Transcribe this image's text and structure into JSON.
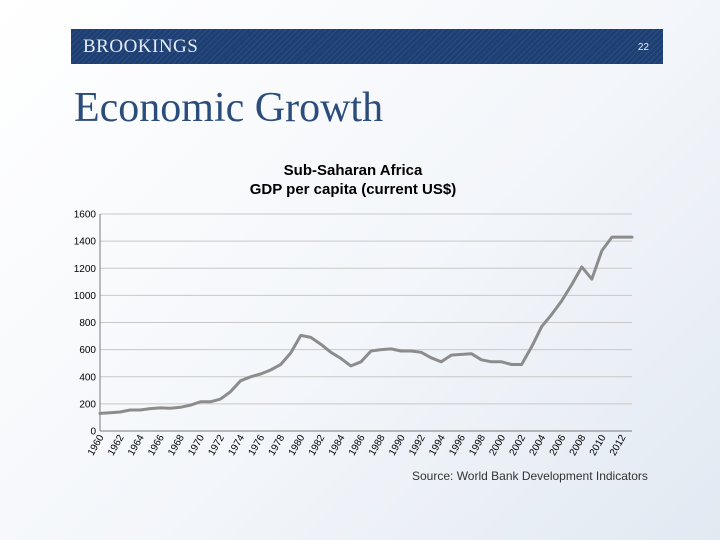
{
  "header": {
    "brand": "BROOKINGS",
    "slide_number": "22"
  },
  "page_title": "Economic Growth",
  "source_note": "Source: World Bank Development Indicators",
  "colors": {
    "header_bar": "#1d3f73",
    "title_text": "#2b4d7c",
    "series_line": "#8c8c8c",
    "gridline": "#c8c8c8"
  },
  "chart_data": {
    "type": "line",
    "title": "Sub-Saharan Africa",
    "subtitle": "GDP per capita (current US$)",
    "xlabel": "",
    "ylabel": "",
    "xlim": [
      1960,
      2013
    ],
    "ylim": [
      0,
      1600
    ],
    "y_ticks": [
      0,
      200,
      400,
      600,
      800,
      1000,
      1200,
      1400,
      1600
    ],
    "x_ticks": [
      "1960",
      "1962",
      "1964",
      "1966",
      "1968",
      "1970",
      "1972",
      "1974",
      "1976",
      "1978",
      "1980",
      "1982",
      "1984",
      "1986",
      "1988",
      "1990",
      "1992",
      "1994",
      "1996",
      "1998",
      "2000",
      "2002",
      "2004",
      "2006",
      "2008",
      "2010",
      "2012"
    ],
    "grid": true,
    "legend": "none",
    "series": [
      {
        "x": [
          1960,
          1961,
          1962,
          1963,
          1964,
          1965,
          1966,
          1967,
          1968,
          1969,
          1970,
          1971,
          1972,
          1973,
          1974,
          1975,
          1976,
          1977,
          1978,
          1979,
          1980,
          1981,
          1982,
          1983,
          1984,
          1985,
          1986,
          1987,
          1988,
          1989,
          1990,
          1991,
          1992,
          1993,
          1994,
          1995,
          1996,
          1997,
          1998,
          1999,
          2000,
          2001,
          2002,
          2003,
          2004,
          2005,
          2006,
          2007,
          2008,
          2009,
          2010,
          2011,
          2012,
          2013
        ],
        "values": [
          130,
          135,
          140,
          155,
          155,
          165,
          170,
          168,
          175,
          190,
          215,
          215,
          235,
          290,
          370,
          400,
          420,
          450,
          490,
          575,
          705,
          690,
          640,
          580,
          535,
          480,
          510,
          590,
          600,
          605,
          590,
          590,
          580,
          540,
          510,
          560,
          565,
          570,
          525,
          510,
          510,
          490,
          490,
          620,
          770,
          860,
          960,
          1080,
          1210,
          1120,
          1330,
          1430,
          1430,
          1430
        ]
      }
    ]
  }
}
